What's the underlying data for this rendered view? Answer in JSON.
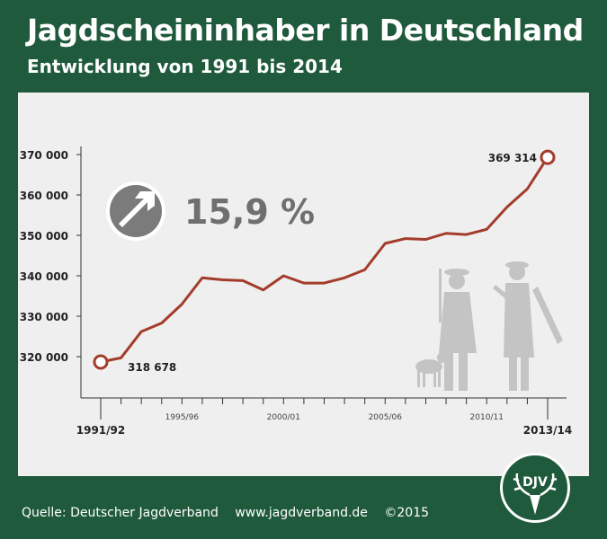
{
  "header": {
    "title": "Jagdscheininhaber in Deutschland",
    "subtitle": "Entwicklung von 1991 bis 2014"
  },
  "badge": {
    "percent": "15,9 %",
    "icon": "arrow-up-right-icon"
  },
  "footer": {
    "source": "Quelle: Deutscher Jagdverband",
    "url": "www.jagdverband.de",
    "copyright": "©2015"
  },
  "logo": {
    "text": "DJV"
  },
  "colors": {
    "background": "#1f5a3c",
    "panel": "#efefef",
    "line": "#a33c2a",
    "badge": "#7b7b7b",
    "silhouette": "#c4c4c4"
  },
  "chart_data": {
    "type": "line",
    "ylim": [
      310000,
      370000
    ],
    "yticks": [
      320000,
      330000,
      340000,
      350000,
      360000,
      370000
    ],
    "ytick_labels": [
      "320 000",
      "330 000",
      "340 000",
      "350 000",
      "360 000",
      "370 000"
    ],
    "x_labels": [
      {
        "index": 0,
        "label": "1991/92",
        "major": true
      },
      {
        "index": 4,
        "label": "1995/96",
        "major": false
      },
      {
        "index": 9,
        "label": "2000/01",
        "major": false
      },
      {
        "index": 14,
        "label": "2005/06",
        "major": false
      },
      {
        "index": 19,
        "label": "2010/11",
        "major": false
      },
      {
        "index": 22,
        "label": "2013/14",
        "major": true
      }
    ],
    "x": [
      "1991/92",
      "1992/93",
      "1993/94",
      "1994/95",
      "1995/96",
      "1996/97",
      "1997/98",
      "1998/99",
      "1999/00",
      "2000/01",
      "2001/02",
      "2002/03",
      "2003/04",
      "2004/05",
      "2005/06",
      "2006/07",
      "2007/08",
      "2008/09",
      "2009/10",
      "2010/11",
      "2011/12",
      "2012/13",
      "2013/14"
    ],
    "values": [
      318678,
      319700,
      326200,
      328300,
      333000,
      339500,
      339000,
      338800,
      336500,
      340000,
      338200,
      338200,
      339500,
      341500,
      348000,
      349200,
      349000,
      350500,
      350200,
      351500,
      357000,
      361500,
      369314
    ],
    "data_labels": [
      {
        "index": 0,
        "label": "318 678"
      },
      {
        "index": 22,
        "label": "369 314"
      }
    ],
    "grid": false
  }
}
